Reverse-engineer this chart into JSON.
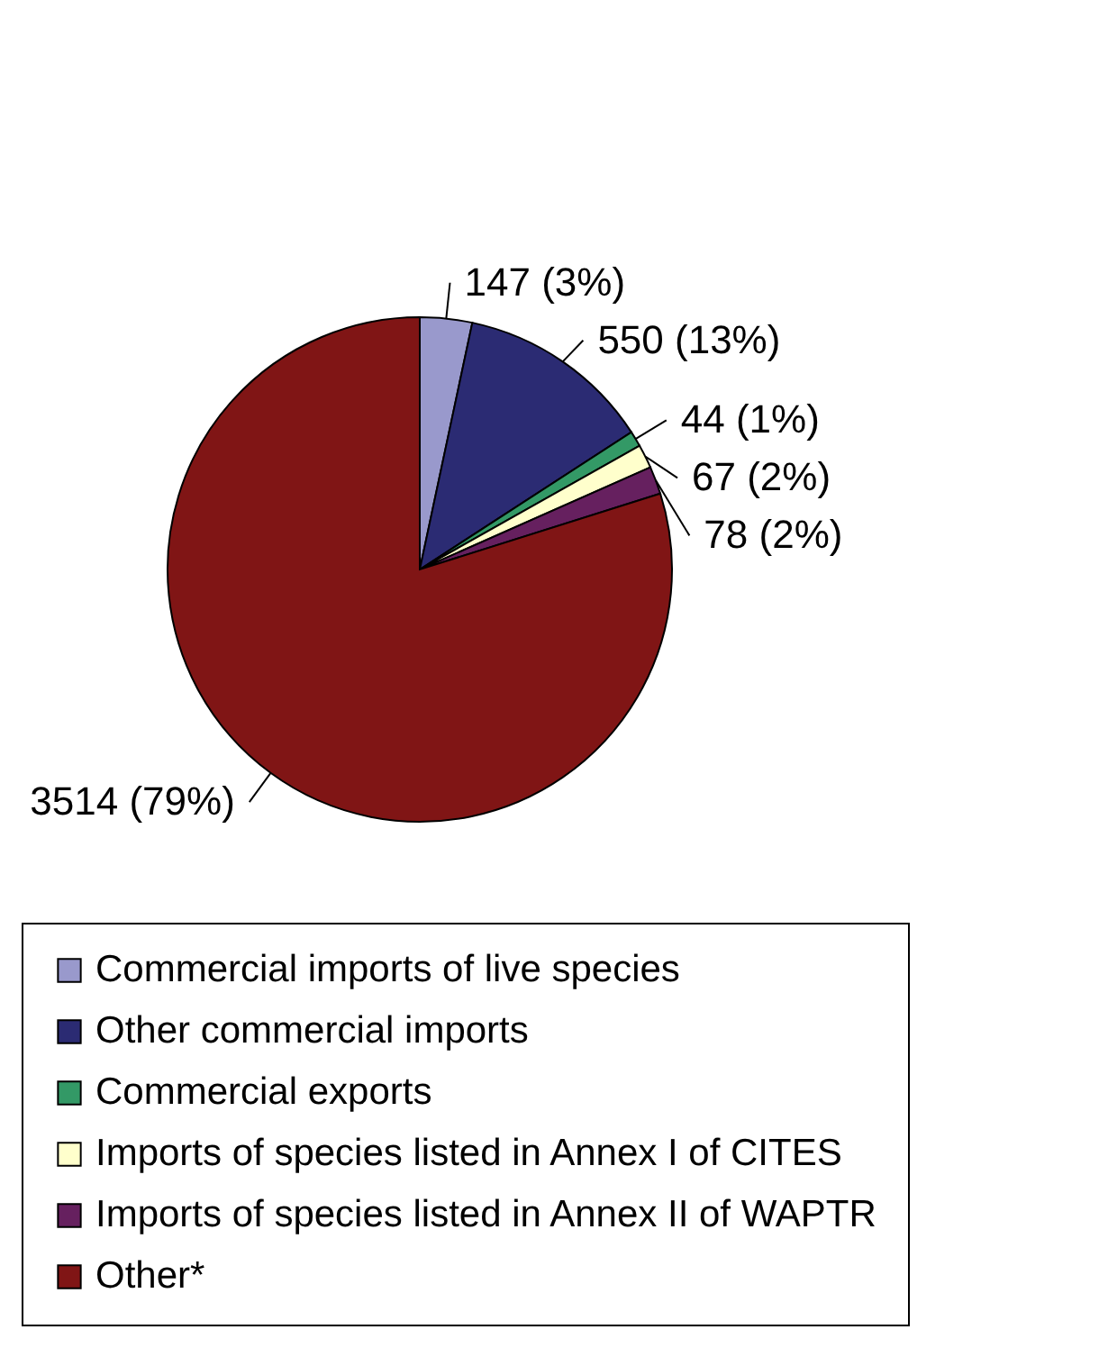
{
  "chart_data": {
    "type": "pie",
    "categories": [
      "Commercial imports of live species",
      "Other commercial imports",
      "Commercial exports",
      "Imports of species listed in Annex I of CITES",
      "Imports of species listed in Annex II of WAPTR",
      "Other*"
    ],
    "values": [
      147,
      550,
      44,
      67,
      78,
      3514
    ],
    "value_labels": [
      "147 (3%)",
      "550 (13%)",
      "44 (1%)",
      "67 (2%)",
      "78 (2%)",
      "3514 (79%)"
    ],
    "colors": [
      "#9999cc",
      "#2b2b73",
      "#339966",
      "#ffffcc",
      "#66205f",
      "#801515"
    ],
    "legend": "bottom"
  }
}
